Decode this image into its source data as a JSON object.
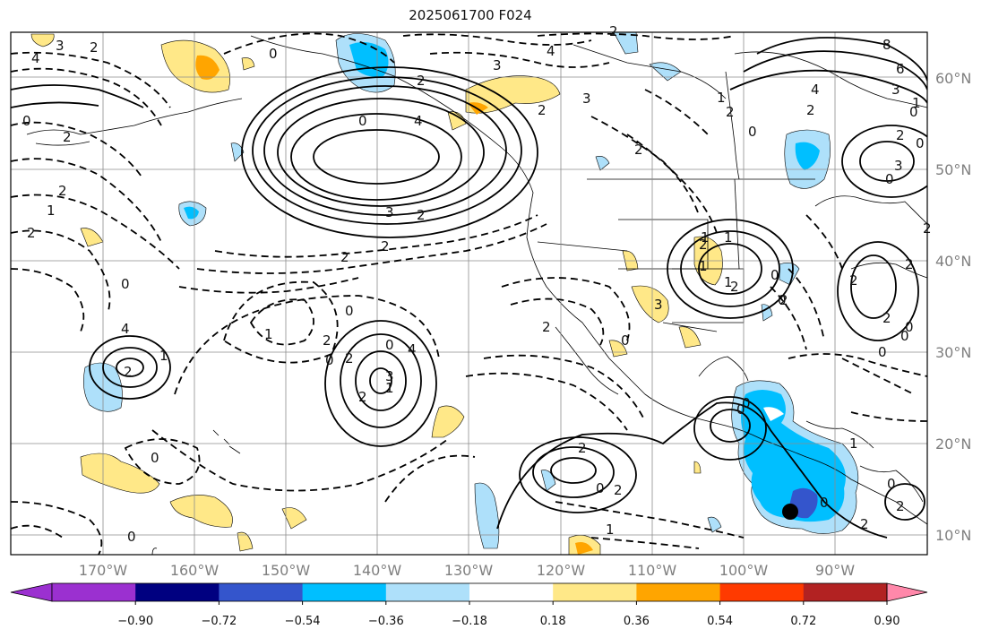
{
  "title": "2025061700 F024",
  "latitude_labels": [
    "60°N",
    "50°N",
    "40°N",
    "30°N",
    "20°N",
    "10°N"
  ],
  "longitude_labels": [
    "170°W",
    "160°W",
    "150°W",
    "140°W",
    "130°W",
    "120°W",
    "110°W",
    "100°W",
    "90°W"
  ],
  "colorbar": {
    "colors": [
      "#9b30d0",
      "#000080",
      "#3455cc",
      "#00bfff",
      "#aee0fa",
      "#ffffff",
      "#ffe888",
      "#ffa500",
      "#ff3a00",
      "#b22222",
      "#ff88aa"
    ],
    "tick_labels": [
      "−0.90",
      "−0.72",
      "−0.54",
      "−0.36",
      "−0.18",
      "0.18",
      "0.36",
      "0.54",
      "0.72",
      "0.90"
    ]
  },
  "contour_labels": [
    "4",
    "3",
    "2",
    "0",
    "2",
    "3",
    "4",
    "2",
    "6",
    "8",
    "4",
    "3",
    "2",
    "1",
    "0",
    "0",
    "2",
    "2",
    "1",
    "2",
    "3",
    "2",
    "1",
    "2",
    "0",
    "2",
    "0",
    "3",
    "0",
    "2",
    "3",
    "4",
    "2",
    "0",
    "2",
    "2",
    "0",
    "0",
    "1",
    "2",
    "2",
    "0",
    "0",
    "2",
    "3",
    "4",
    "2",
    "1",
    "1",
    "0",
    "0",
    "2",
    "0",
    "2",
    "4",
    "1",
    "2",
    "0",
    "0",
    "2",
    "0",
    "2",
    "0",
    "0",
    "1",
    "0",
    "1",
    "2",
    "0",
    "2",
    "2",
    "0",
    "0",
    "0",
    "2",
    "1",
    "1",
    "2",
    "3",
    "1",
    "2",
    "2"
  ],
  "marker": {
    "name": "storm-center",
    "lat": 12.5,
    "lon": -95.5
  }
}
